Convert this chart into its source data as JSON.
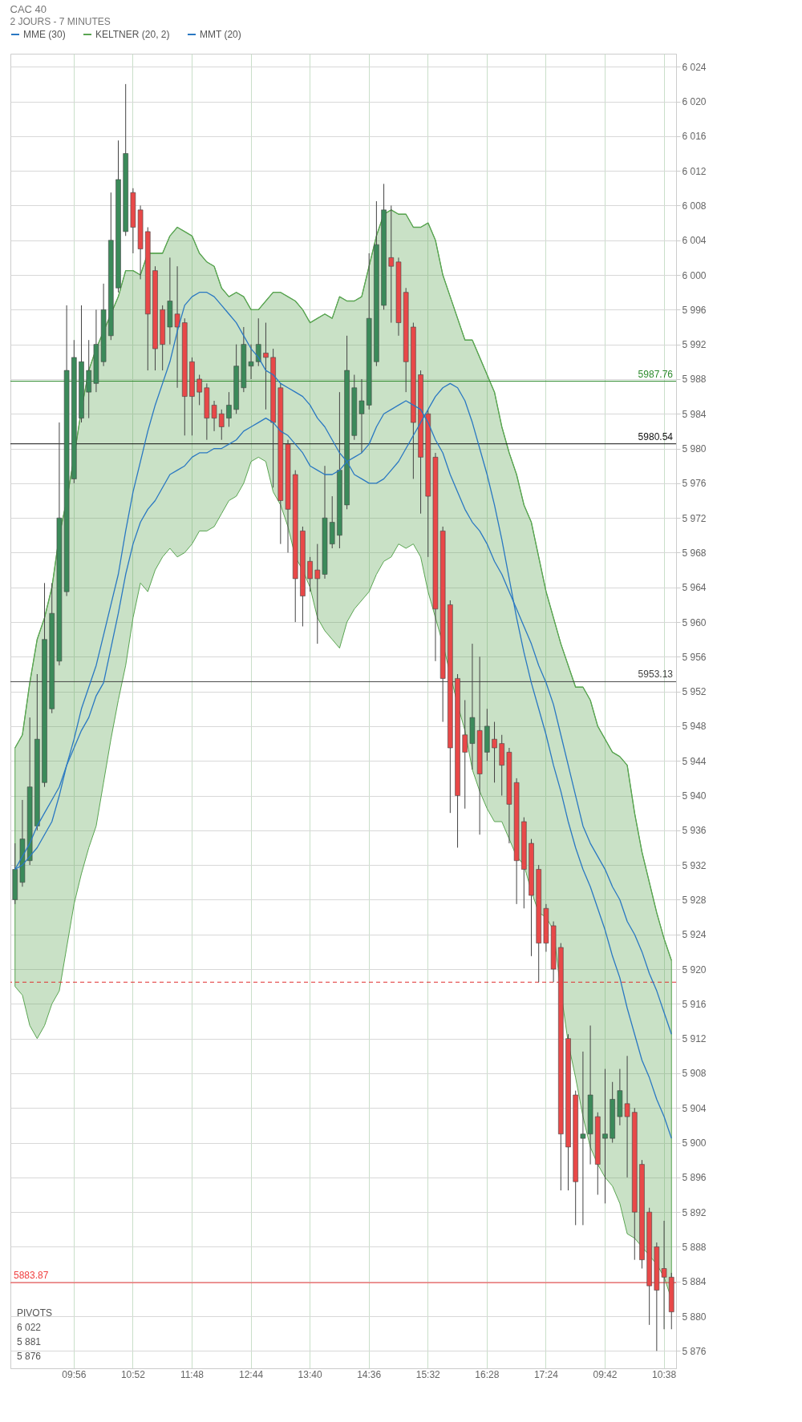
{
  "chart_data": {
    "type": "candlestick",
    "title": "CAC 40",
    "subtitle": "2 JOURS - 7 MINUTES",
    "categories": [
      null,
      null,
      null,
      null,
      null,
      null,
      null,
      null,
      "09:56",
      null,
      null,
      null,
      null,
      null,
      null,
      null,
      "10:52",
      null,
      null,
      null,
      null,
      null,
      null,
      null,
      "11:48",
      null,
      null,
      null,
      null,
      null,
      null,
      null,
      "12:44",
      null,
      null,
      null,
      null,
      null,
      null,
      null,
      "13:40",
      null,
      null,
      null,
      null,
      null,
      null,
      null,
      "14:36",
      null,
      null,
      null,
      null,
      null,
      null,
      null,
      "15:32",
      null,
      null,
      null,
      null,
      null,
      null,
      null,
      "16:28",
      null,
      null,
      null,
      null,
      null,
      null,
      null,
      "17:24",
      null,
      null,
      null,
      null,
      null,
      null,
      null,
      "09:42",
      null,
      null,
      null,
      null,
      null,
      null,
      null,
      "10:38",
      null
    ],
    "ohlc": [
      [
        5928,
        5934.5,
        5927.5,
        5931.5
      ],
      [
        5930,
        5939.5,
        5929.5,
        5935
      ],
      [
        5932.5,
        5949,
        5932,
        5941
      ],
      [
        5936.5,
        5954,
        5936,
        5946.5
      ],
      [
        5941.5,
        5964.5,
        5941,
        5958
      ],
      [
        5950,
        5964.5,
        5949.5,
        5961
      ],
      [
        5955.5,
        5983,
        5955,
        5972
      ],
      [
        5963.5,
        5996.5,
        5963,
        5989
      ],
      [
        5976.5,
        5992.5,
        5976,
        5990.5
      ],
      [
        5983.5,
        5996.5,
        5983,
        5990
      ],
      [
        5986.5,
        5992.5,
        5983.5,
        5989
      ],
      [
        5987.5,
        5996,
        5986.5,
        5992
      ],
      [
        5990,
        5999,
        5989.5,
        5996
      ],
      [
        5993,
        6009.5,
        5992.5,
        6004
      ],
      [
        5998.5,
        6015.5,
        5998,
        6011
      ],
      [
        6005,
        6022,
        6004.5,
        6014
      ],
      [
        6009.5,
        6010,
        6002.5,
        6005.5
      ],
      [
        6007.5,
        6008,
        5999.5,
        6003
      ],
      [
        6005,
        6005.5,
        5989,
        5995.5
      ],
      [
        6000.5,
        6001,
        5989,
        5991.5
      ],
      [
        5996,
        5996.5,
        5989,
        5992
      ],
      [
        5994,
        6002,
        5992,
        5997
      ],
      [
        5995.5,
        6001,
        5987,
        5994
      ],
      [
        5994.5,
        5995,
        5981.5,
        5986
      ],
      [
        5990,
        5990.5,
        5981.5,
        5986
      ],
      [
        5988,
        5988.5,
        5985,
        5986.5
      ],
      [
        5987,
        5987.5,
        5981,
        5983.5
      ],
      [
        5985,
        5985.5,
        5982,
        5983.5
      ],
      [
        5984,
        5984.5,
        5981,
        5982.5
      ],
      [
        5983.5,
        5986.5,
        5982.5,
        5985
      ],
      [
        5984.5,
        5992,
        5984,
        5989.5
      ],
      [
        5987,
        5994,
        5986.5,
        5992
      ],
      [
        5989.5,
        5992,
        5988,
        5990
      ],
      [
        5990,
        5995,
        5989.5,
        5992
      ],
      [
        5991,
        5994.5,
        5984.5,
        5990.5
      ],
      [
        5990.5,
        5991.5,
        5975.5,
        5983
      ],
      [
        5987,
        5987.5,
        5969,
        5974
      ],
      [
        5980.5,
        5981,
        5968,
        5973
      ],
      [
        5977,
        5977.5,
        5960,
        5965
      ],
      [
        5970.5,
        5971,
        5959.5,
        5963
      ],
      [
        5967,
        5967.5,
        5963.5,
        5965
      ],
      [
        5966,
        5969,
        5957.5,
        5965
      ],
      [
        5965.5,
        5978,
        5965,
        5972
      ],
      [
        5969,
        5974.5,
        5968.5,
        5971.5
      ],
      [
        5970,
        5986.5,
        5968.5,
        5977.5
      ],
      [
        5973.5,
        5993,
        5973,
        5989
      ],
      [
        5981.5,
        5988.5,
        5981,
        5987
      ],
      [
        5984,
        5988,
        5979.5,
        5985.5
      ],
      [
        5985,
        6002.5,
        5984.5,
        5995
      ],
      [
        5990,
        6008.5,
        5989.5,
        6003.5
      ],
      [
        5996.5,
        6010.5,
        5996,
        6007.5
      ],
      [
        6002,
        6008,
        5994.5,
        6001
      ],
      [
        6001.5,
        6002,
        5993,
        5994.5
      ],
      [
        5998,
        5998.5,
        5986.5,
        5990
      ],
      [
        5994,
        5994.5,
        5976.5,
        5983
      ],
      [
        5988.5,
        5989,
        5972.5,
        5979
      ],
      [
        5984,
        5984.5,
        5967.5,
        5974.5
      ],
      [
        5979,
        5979.5,
        5955.5,
        5961.5
      ],
      [
        5970.5,
        5971,
        5948.5,
        5953.5
      ],
      [
        5962,
        5962.5,
        5938,
        5945.5
      ],
      [
        5953.5,
        5954,
        5934,
        5940
      ],
      [
        5947,
        5951,
        5938.5,
        5945
      ],
      [
        5946,
        5957.5,
        5943,
        5949
      ],
      [
        5947.5,
        5956,
        5935.5,
        5942.5
      ],
      [
        5945,
        5950,
        5944,
        5948
      ],
      [
        5946.5,
        5948.5,
        5941.5,
        5945.5
      ],
      [
        5946,
        5947,
        5940,
        5943.5
      ],
      [
        5945,
        5945.5,
        5934.5,
        5939
      ],
      [
        5941.5,
        5942,
        5927.5,
        5932.5
      ],
      [
        5937,
        5937.5,
        5927,
        5931.5
      ],
      [
        5934.5,
        5935,
        5921.5,
        5928.5
      ],
      [
        5931.5,
        5932,
        5918.5,
        5923
      ],
      [
        5927,
        5927.5,
        5922,
        5923
      ],
      [
        5925,
        5925.5,
        5918.5,
        5920
      ],
      [
        5922.5,
        5923,
        5894.5,
        5901
      ],
      [
        5912,
        5912.5,
        5894.5,
        5899.5
      ],
      [
        5905.5,
        5906,
        5890.5,
        5895.5
      ],
      [
        5900.5,
        5910.5,
        5890.5,
        5901
      ],
      [
        5901,
        5913.5,
        5897.5,
        5905.5
      ],
      [
        5903,
        5903.5,
        5894,
        5897.5
      ],
      [
        5900.5,
        5908.5,
        5893,
        5901
      ],
      [
        5900.5,
        5907,
        5900,
        5905
      ],
      [
        5903,
        5908.5,
        5902,
        5906
      ],
      [
        5904.5,
        5910,
        5896,
        5903
      ],
      [
        5903.5,
        5904,
        5886.5,
        5892
      ],
      [
        5897.5,
        5898,
        5885.5,
        5886.5
      ],
      [
        5892,
        5892.5,
        5879,
        5883.5
      ],
      [
        5888,
        5888.5,
        5876,
        5883
      ],
      [
        5885.5,
        5891,
        5878.5,
        5884.5
      ],
      [
        5884.5,
        5885,
        5878.5,
        5880.5
      ]
    ],
    "colors": [
      "#3b8a5a",
      "#3b8a5a",
      "#3b8a5a",
      "#3b8a5a",
      "#3b8a5a",
      "#3b8a5a",
      "#3b8a5a",
      "#3b8a5a",
      "#3b8a5a",
      "#3b8a5a",
      "#3b8a5a",
      "#3b8a5a",
      "#3b8a5a",
      "#3b8a5a",
      "#3b8a5a",
      "#3b8a5a",
      "#e84848",
      "#e84848",
      "#e84848",
      "#e84848",
      "#e84848",
      "#3b8a5a",
      "#e84848",
      "#e84848",
      "#e84848",
      "#e84848",
      "#e84848",
      "#e84848",
      "#e84848",
      "#3b8a5a",
      "#3b8a5a",
      "#3b8a5a",
      "#3b8a5a",
      "#3b8a5a",
      "#e84848",
      "#e84848",
      "#e84848",
      "#e84848",
      "#e84848",
      "#e84848",
      "#e84848",
      "#e84848",
      "#3b8a5a",
      "#3b8a5a",
      "#3b8a5a",
      "#3b8a5a",
      "#3b8a5a",
      "#3b8a5a",
      "#3b8a5a",
      "#3b8a5a",
      "#3b8a5a",
      "#e84848",
      "#e84848",
      "#e84848",
      "#e84848",
      "#e84848",
      "#e84848",
      "#e84848",
      "#e84848",
      "#e84848",
      "#e84848",
      "#e84848",
      "#3b8a5a",
      "#e84848",
      "#3b8a5a",
      "#e84848",
      "#e84848",
      "#e84848",
      "#e84848",
      "#e84848",
      "#e84848",
      "#e84848",
      "#e84848",
      "#e84848",
      "#e84848",
      "#e84848",
      "#e84848",
      "#3b8a5a",
      "#3b8a5a",
      "#e84848",
      "#3b8a5a",
      "#3b8a5a",
      "#3b8a5a",
      "#e84848",
      "#e84848",
      "#e84848",
      "#e84848",
      "#e84848",
      "#e84848",
      "#e84848"
    ],
    "series": [
      {
        "name": "MME (30)",
        "type": "line",
        "color": "#2a78c2",
        "values": [
          5931.5,
          5932,
          5933,
          5934,
          5935.5,
          5937,
          5940,
          5943.5,
          5946.5,
          5950,
          5952.5,
          5955,
          5958.5,
          5962,
          5965.5,
          5970.5,
          5975,
          5978.5,
          5982,
          5985,
          5987.5,
          5990,
          5993.5,
          5996.5,
          5997.5,
          5998,
          5998,
          5997.5,
          5996.5,
          5995.5,
          5994.5,
          5993,
          5991.5,
          5990.5,
          5989,
          5988.5,
          5987.5,
          5987,
          5986.5,
          5986,
          5985,
          5983.5,
          5982.5,
          5981,
          5979.5,
          5978.5,
          5977,
          5976.5,
          5976,
          5976,
          5976.5,
          5977.5,
          5978.5,
          5980,
          5981.5,
          5983,
          5984.5,
          5986,
          5987,
          5987.5,
          5987,
          5985.5,
          5983,
          5980,
          5977,
          5973.5,
          5969.5,
          5965,
          5960.5,
          5956.5,
          5953,
          5950,
          5947,
          5943.5,
          5940.5,
          5937,
          5934,
          5931.5,
          5929.5,
          5927,
          5924.5,
          5921.5,
          5919,
          5915.5,
          5912.5,
          5909.5,
          5907.5,
          5905,
          5903,
          5900.5
        ]
      },
      {
        "name": "KELTNER (20, 2)",
        "type": "line",
        "color": "#5aa552",
        "upper": [
          5945.5,
          5947,
          5953,
          5958,
          5960.5,
          5964,
          5970,
          5974,
          5979,
          5984.5,
          5989,
          5991.5,
          5993.5,
          5995.5,
          5997.5,
          6000.5,
          6000.5,
          6000,
          6002.5,
          6002.5,
          6002.5,
          6004.5,
          6005.5,
          6005,
          6004.5,
          6002.5,
          6001.5,
          6001,
          5998.5,
          5997.5,
          5998,
          5997.5,
          5996,
          5996,
          5997,
          5998,
          5998,
          5997.5,
          5997,
          5996,
          5994.5,
          5995,
          5995.5,
          5995,
          5997.5,
          5997,
          5997,
          5997.5,
          6001,
          6004.5,
          6007,
          6007.5,
          6007,
          6007,
          6005.5,
          6005.5,
          6006,
          6004,
          6000,
          5997.5,
          5995,
          5992.5,
          5992.5,
          5990.5,
          5988.5,
          5986.5,
          5982.5,
          5979.5,
          5977,
          5973.5,
          5971.5,
          5967.5,
          5963.5,
          5960.5,
          5957.5,
          5955,
          5952.5,
          5952.5,
          5951,
          5948,
          5946.5,
          5945,
          5944.5,
          5943.5,
          5938,
          5933.5,
          5930,
          5926.5,
          5923.5,
          5921
        ],
        "values": [
          5945.5,
          5947,
          5953,
          5958,
          5960.5,
          5964,
          5970,
          5974,
          5979,
          5984.5,
          5989,
          5991.5,
          5993.5,
          5995.5,
          5997.5,
          6000.5,
          6000.5,
          6000,
          6002.5,
          6002.5,
          6002.5,
          6004.5,
          6005.5,
          6005,
          6004.5,
          6002.5,
          6001.5,
          6001,
          5998.5,
          5997.5,
          5998,
          5997.5,
          5996,
          5996,
          5997,
          5998,
          5998,
          5997.5,
          5997,
          5996,
          5994.5,
          5995,
          5995.5,
          5995,
          5997.5,
          5997,
          5997,
          5997.5,
          6001,
          6004.5,
          6007,
          6007.5,
          6007,
          6007,
          6005.5,
          6005.5,
          6006,
          6004,
          6000,
          5997.5,
          5995,
          5992.5,
          5992.5,
          5990.5,
          5988.5,
          5986.5,
          5982.5,
          5979.5,
          5977,
          5973.5,
          5971.5,
          5967.5,
          5963.5,
          5960.5,
          5957.5,
          5955,
          5952.5,
          5952.5,
          5951,
          5948,
          5946.5,
          5945,
          5944.5,
          5943.5,
          5938,
          5933.5,
          5930,
          5926.5,
          5923.5,
          5921
        ],
        "lower": [
          5918,
          5917,
          5913.5,
          5912,
          5913.5,
          5916,
          5917.5,
          5922.5,
          5927.5,
          5931,
          5934,
          5936.5,
          5941.5,
          5946.5,
          5951,
          5955,
          5960.5,
          5964.5,
          5963.5,
          5966,
          5967.5,
          5968.5,
          5967.5,
          5968,
          5969,
          5970.5,
          5970.5,
          5971,
          5972.5,
          5974,
          5974.5,
          5976,
          5978.5,
          5979,
          5978.5,
          5975,
          5973.5,
          5971,
          5967.5,
          5966,
          5964,
          5960.5,
          5959,
          5958,
          5957,
          5960,
          5961.5,
          5962.5,
          5963.5,
          5965.5,
          5967,
          5967.5,
          5969,
          5968.5,
          5969,
          5967.5,
          5963.5,
          5960.5,
          5957.5,
          5954,
          5950.5,
          5947.5,
          5943,
          5940.5,
          5938.5,
          5937,
          5937,
          5935,
          5933,
          5932,
          5929,
          5926.5,
          5926,
          5924.5,
          5917.5,
          5911.5,
          5907.5,
          5903,
          5899.5,
          5897.5,
          5896,
          5895,
          5893,
          5889.5,
          5889,
          5888,
          5887,
          5886,
          5884.5,
          5882
        ]
      },
      {
        "name": "MMT (20)",
        "type": "line",
        "color": "#2a78c2",
        "values": [
          5931.5,
          5933,
          5934.5,
          5936.5,
          5938,
          5939.5,
          5941,
          5943.5,
          5945.5,
          5947.5,
          5949,
          5951.5,
          5953,
          5957,
          5961,
          5965.5,
          5969,
          5971.5,
          5973,
          5974,
          5975.5,
          5977,
          5977.5,
          5978,
          5979,
          5979.5,
          5979.5,
          5980,
          5980,
          5980.5,
          5981,
          5982,
          5982.5,
          5983,
          5983.5,
          5983,
          5982,
          5981.5,
          5980.5,
          5979.5,
          5978,
          5977.5,
          5977,
          5977,
          5977.5,
          5978.5,
          5979,
          5979.5,
          5980.5,
          5982.5,
          5984,
          5984.5,
          5985,
          5985.5,
          5985,
          5984.5,
          5983,
          5981,
          5979.5,
          5977,
          5975,
          5973,
          5971.5,
          5970.5,
          5969,
          5967,
          5965.5,
          5963.5,
          5961.5,
          5959.5,
          5957.5,
          5955,
          5953,
          5950.5,
          5947,
          5943.5,
          5940,
          5936.5,
          5934.5,
          5933,
          5931.5,
          5929.5,
          5928,
          5925.5,
          5924,
          5922,
          5919.5,
          5917.5,
          5915,
          5912.5
        ]
      }
    ],
    "ylim": [
      5874,
      6025.5
    ],
    "yticks": [
      {
        "value": 5876,
        "label": "5 876"
      },
      {
        "value": 5880,
        "label": "5 880"
      },
      {
        "value": 5884,
        "label": "5 884"
      },
      {
        "value": 5888,
        "label": "5 888"
      },
      {
        "value": 5892,
        "label": "5 892"
      },
      {
        "value": 5896,
        "label": "5 896"
      },
      {
        "value": 5900,
        "label": "5 900"
      },
      {
        "value": 5904,
        "label": "5 904"
      },
      {
        "value": 5908,
        "label": "5 908"
      },
      {
        "value": 5912,
        "label": "5 912"
      },
      {
        "value": 5916,
        "label": "5 916"
      },
      {
        "value": 5920,
        "label": "5 920"
      },
      {
        "value": 5924,
        "label": "5 924"
      },
      {
        "value": 5928,
        "label": "5 928"
      },
      {
        "value": 5932,
        "label": "5 932"
      },
      {
        "value": 5936,
        "label": "5 936"
      },
      {
        "value": 5940,
        "label": "5 940"
      },
      {
        "value": 5944,
        "label": "5 944"
      },
      {
        "value": 5948,
        "label": "5 948"
      },
      {
        "value": 5952,
        "label": "5 952"
      },
      {
        "value": 5956,
        "label": "5 956"
      },
      {
        "value": 5960,
        "label": "5 960"
      },
      {
        "value": 5964,
        "label": "5 964"
      },
      {
        "value": 5968,
        "label": "5 968"
      },
      {
        "value": 5972,
        "label": "5 972"
      },
      {
        "value": 5976,
        "label": "5 976"
      },
      {
        "value": 5980,
        "label": "5 980"
      },
      {
        "value": 5984,
        "label": "5 984"
      },
      {
        "value": 5988,
        "label": "5 988"
      },
      {
        "value": 5992,
        "label": "5 992"
      },
      {
        "value": 5996,
        "label": "5 996"
      },
      {
        "value": 6000,
        "label": "6 000"
      },
      {
        "value": 6004,
        "label": "6 004"
      },
      {
        "value": 6008,
        "label": "6 008"
      },
      {
        "value": 6012,
        "label": "6 012"
      },
      {
        "value": 6016,
        "label": "6 016"
      },
      {
        "value": 6020,
        "label": "6 020"
      },
      {
        "value": 6024,
        "label": "6 024"
      }
    ],
    "ref_lines": [
      {
        "axis": "y",
        "value": 5980.54,
        "label": "5980.54",
        "color": "#111111"
      },
      {
        "axis": "y",
        "value": 5987.76,
        "label": "5987.76",
        "color": "#2e8b2e"
      },
      {
        "axis": "y",
        "value": 5953.13,
        "label": "5953.13",
        "color": "#444444"
      },
      {
        "axis": "y",
        "value": 5918.5,
        "color": "#e03030",
        "line_style": "dashed"
      },
      {
        "axis": "y",
        "value": 5883.87,
        "label": "5883.87",
        "color": "#f04040"
      }
    ],
    "annotations": [
      "PIVOTS",
      "6 022",
      "5 881",
      "5 876"
    ],
    "grid": true,
    "legend": "top left"
  }
}
